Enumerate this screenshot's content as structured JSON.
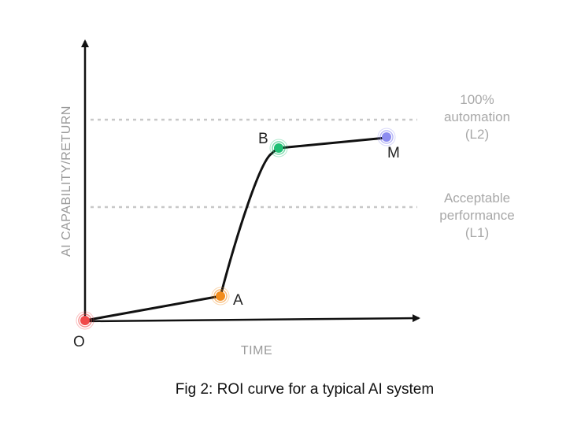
{
  "axes": {
    "y_label": "AI CAPABILITY/RETURN",
    "x_label": "TIME"
  },
  "levels": [
    {
      "id": "l2",
      "lines": [
        "100%",
        "automation",
        "(L2)"
      ]
    },
    {
      "id": "l1",
      "lines": [
        "Acceptable",
        "performance",
        "(L1)"
      ]
    }
  ],
  "points": [
    {
      "id": "o",
      "label": "O",
      "color": "#f04a4a"
    },
    {
      "id": "a",
      "label": "A",
      "color": "#f28c1c"
    },
    {
      "id": "b",
      "label": "B",
      "color": "#1fbf73"
    },
    {
      "id": "m",
      "label": "M",
      "color": "#8c8cf0"
    }
  ],
  "colors": {
    "axis": "#111111",
    "curve": "#111111",
    "dashed_line": "#c8c8c8",
    "level_text": "#a8a8a8",
    "axis_text": "#9a9a9a"
  },
  "caption": "Fig 2: ROI curve for a typical AI system"
}
